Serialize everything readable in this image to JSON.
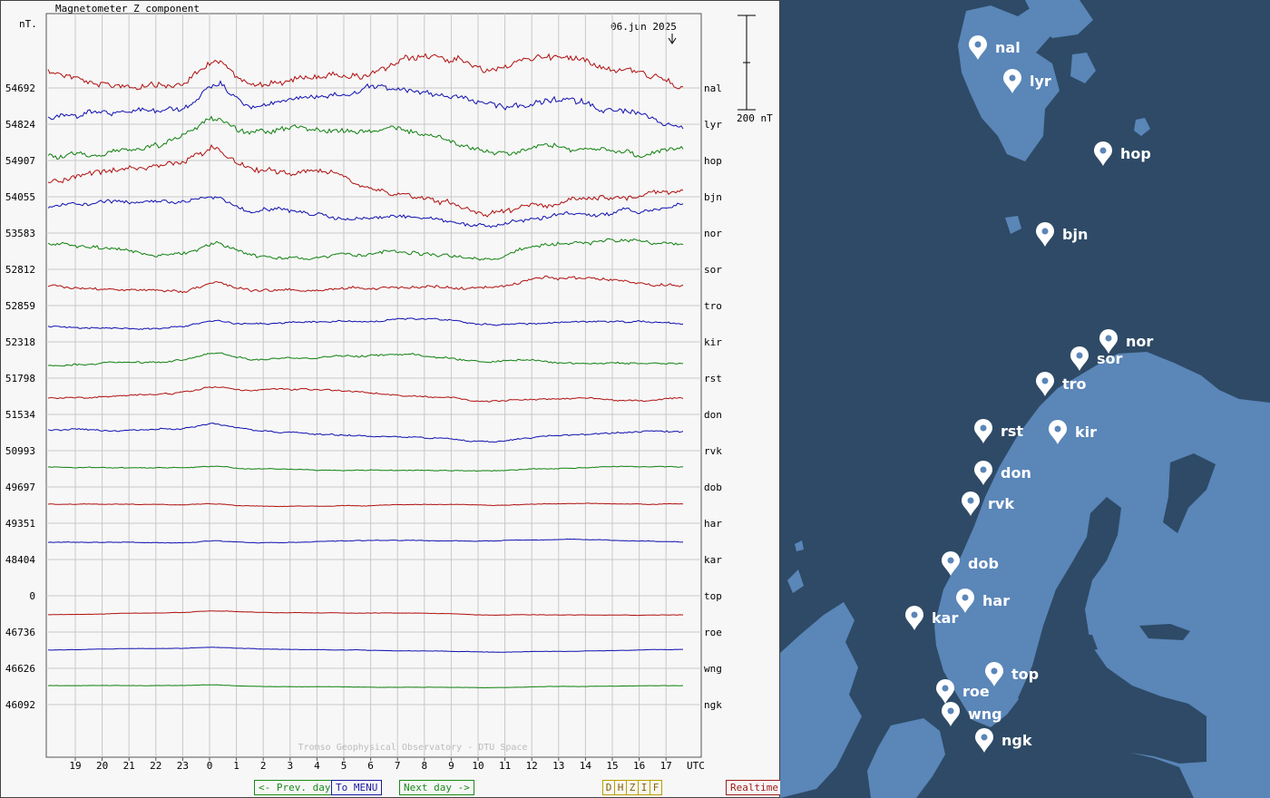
{
  "chart_data": {
    "type": "line",
    "title": "Magnetometer Z component",
    "unit_label": "nT.",
    "date_label": "06.jun 2025",
    "scale_label": "200 nT",
    "x_axis_unit": "UTC",
    "x_ticks": [
      "19",
      "20",
      "21",
      "22",
      "23",
      "0",
      "1",
      "2",
      "3",
      "4",
      "5",
      "6",
      "7",
      "8",
      "9",
      "10",
      "11",
      "12",
      "13",
      "14",
      "15",
      "16",
      "17"
    ],
    "credit": "Tromso Geophysical Observatory - DTU Space",
    "grid": true,
    "series_colors": [
      "#b01010",
      "#1010b0",
      "#108010"
    ],
    "stations": [
      {
        "name": "nal",
        "baseline": "54692",
        "amp": 2.4
      },
      {
        "name": "lyr",
        "baseline": "54824",
        "amp": 2.1
      },
      {
        "name": "hop",
        "baseline": "54907",
        "amp": 1.9
      },
      {
        "name": "bjn",
        "baseline": "54055",
        "amp": 2.0
      },
      {
        "name": "nor",
        "baseline": "53583",
        "amp": 1.4
      },
      {
        "name": "sor",
        "baseline": "52812",
        "amp": 1.3
      },
      {
        "name": "tro",
        "baseline": "52859",
        "amp": 1.0
      },
      {
        "name": "kir",
        "baseline": "52318",
        "amp": 0.6
      },
      {
        "name": "rst",
        "baseline": "51798",
        "amp": 0.7
      },
      {
        "name": "don",
        "baseline": "51534",
        "amp": 0.6
      },
      {
        "name": "rvk",
        "baseline": "50993",
        "amp": 0.6
      },
      {
        "name": "dob",
        "baseline": "49697",
        "amp": 0.3
      },
      {
        "name": "har",
        "baseline": "49351",
        "amp": 0.2
      },
      {
        "name": "kar",
        "baseline": "48404",
        "amp": 0.25
      },
      {
        "name": "top",
        "baseline": "0",
        "amp": 0
      },
      {
        "name": "roe",
        "baseline": "46736",
        "amp": 0.15
      },
      {
        "name": "wng",
        "baseline": "46626",
        "amp": 0.15
      },
      {
        "name": "ngk",
        "baseline": "46092",
        "amp": 0.12
      }
    ]
  },
  "nav": {
    "prev": "<- Prev. day",
    "menu": "To MENU",
    "next": "Next day ->",
    "components": [
      "D",
      "H",
      "Z",
      "I",
      "F"
    ],
    "realtime": "Realtime"
  },
  "map": {
    "land_color": "#5a86b8",
    "sea_color": "#2e4a66",
    "markers": [
      {
        "label": "nal"
      },
      {
        "label": "lyr"
      },
      {
        "label": "hop"
      },
      {
        "label": "bjn"
      },
      {
        "label": "nor"
      },
      {
        "label": "sor"
      },
      {
        "label": "tro"
      },
      {
        "label": "rst"
      },
      {
        "label": "kir"
      },
      {
        "label": "don"
      },
      {
        "label": "rvk"
      },
      {
        "label": "dob"
      },
      {
        "label": "har"
      },
      {
        "label": "kar"
      },
      {
        "label": "top"
      },
      {
        "label": "roe"
      },
      {
        "label": "wng"
      },
      {
        "label": "ngk"
      }
    ]
  }
}
